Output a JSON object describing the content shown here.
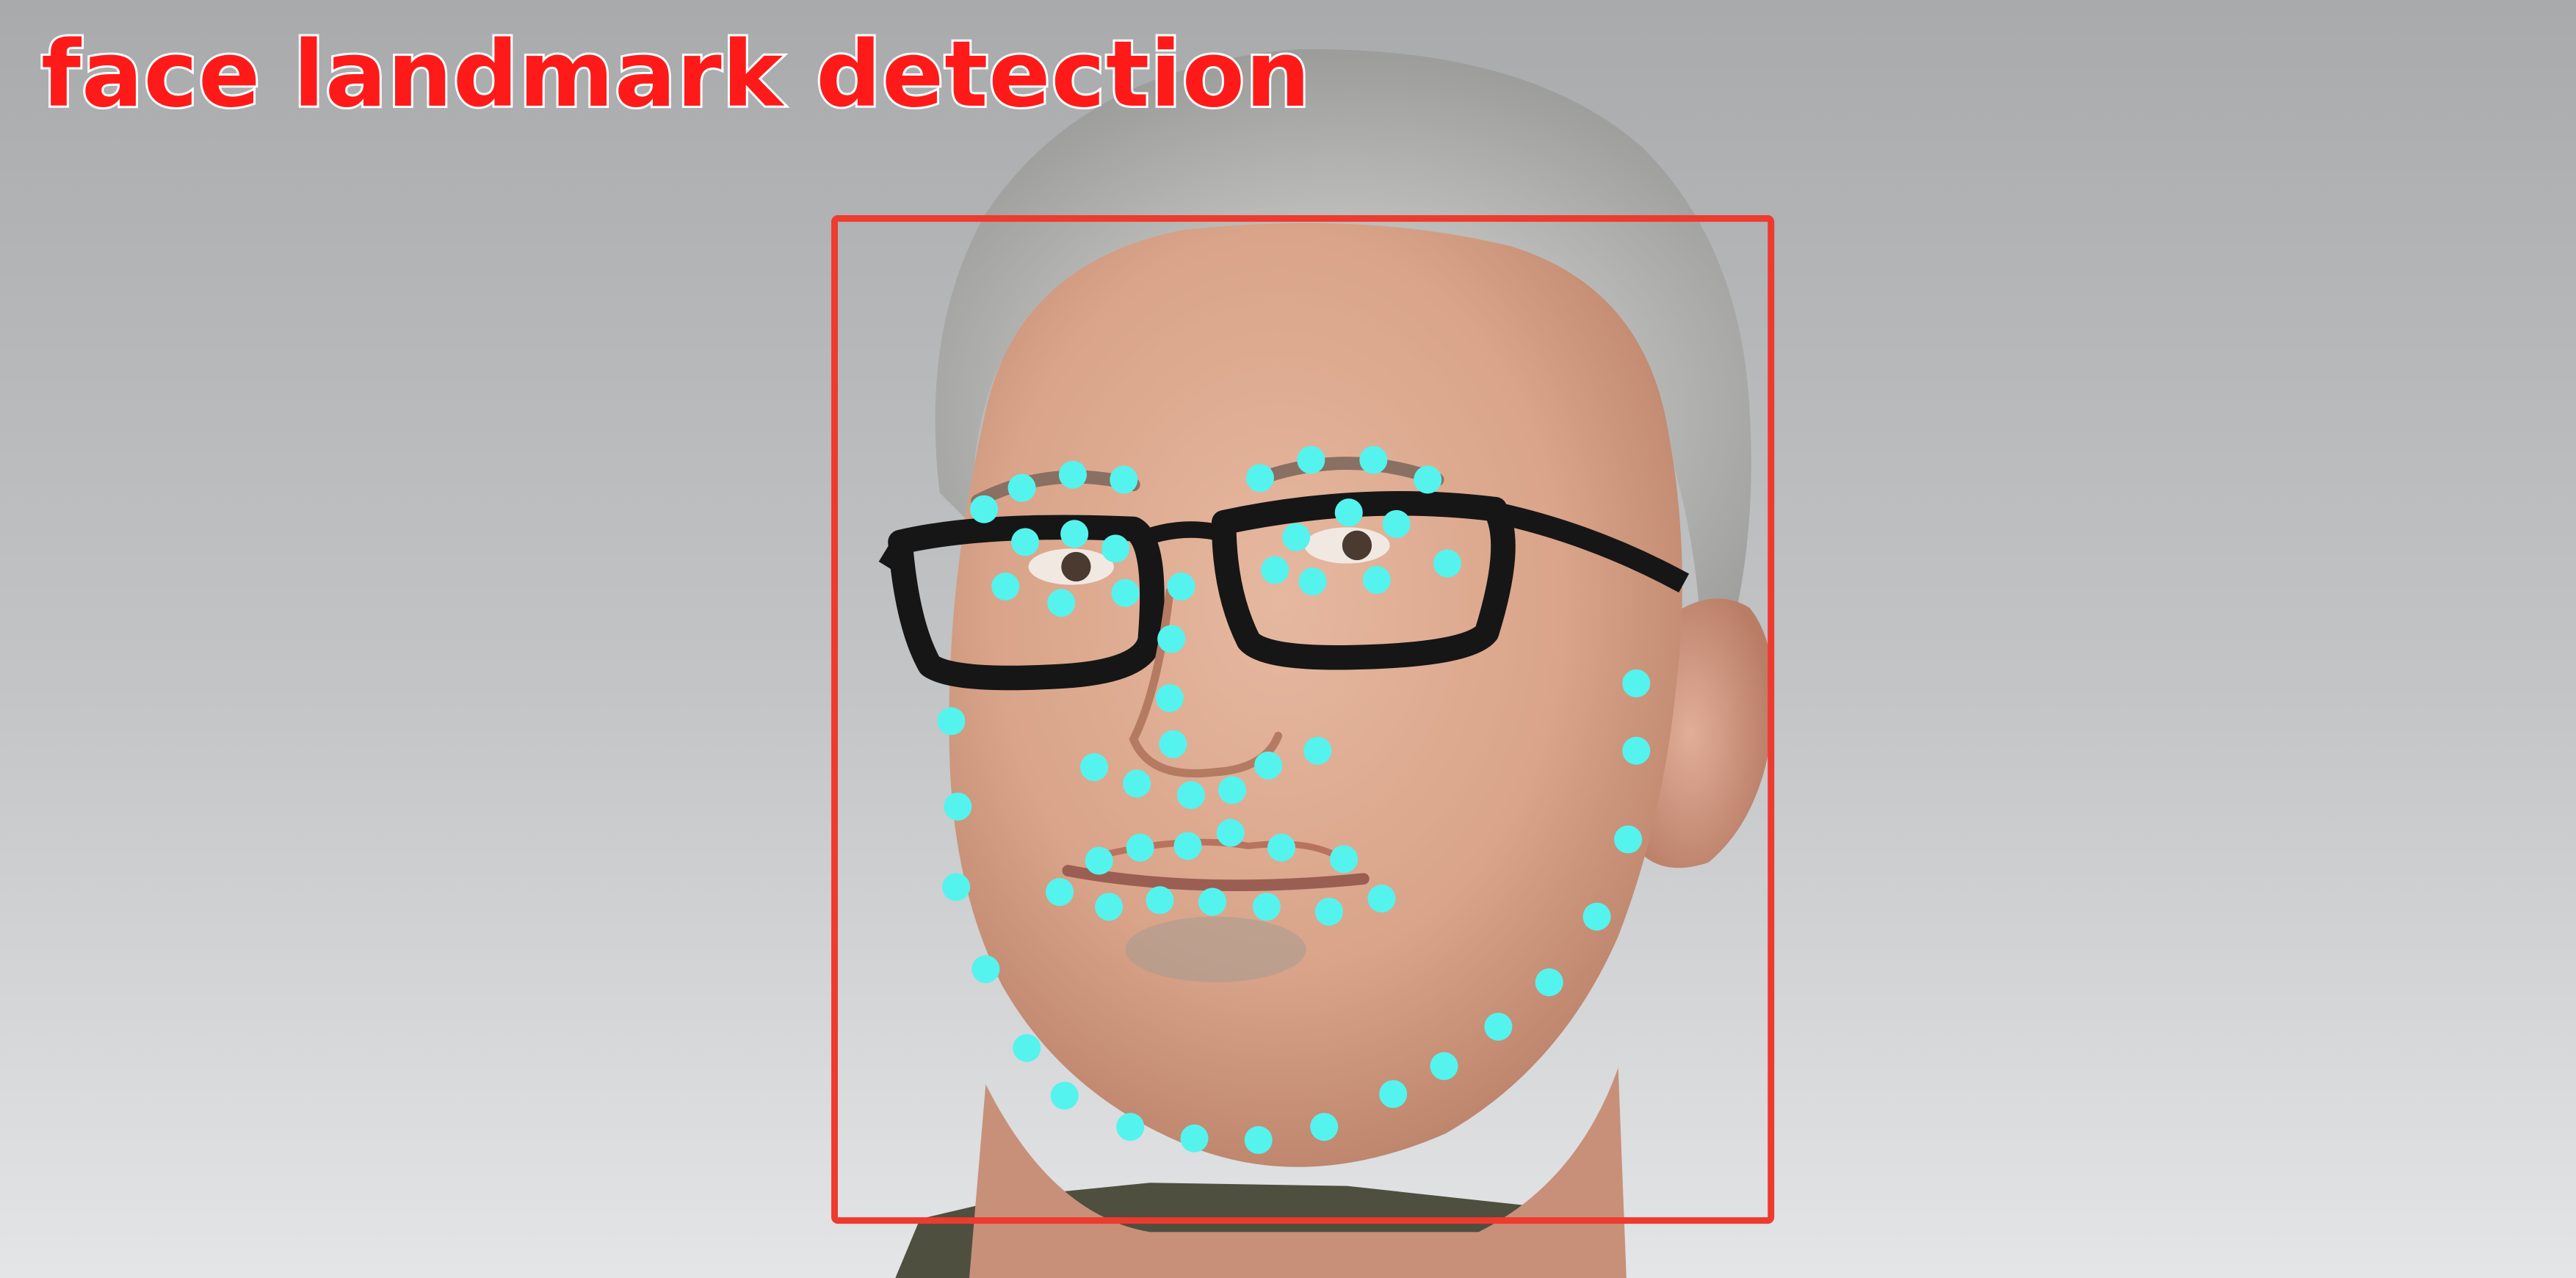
{
  "title": "face landmark detection",
  "colors": {
    "title": "#ff1a1a",
    "face_box": "#ee3a2f",
    "landmark": "#55f3ee",
    "background_top": "#a9abad",
    "background_bottom": "#e2e4e6"
  },
  "landmark_count": 68
}
